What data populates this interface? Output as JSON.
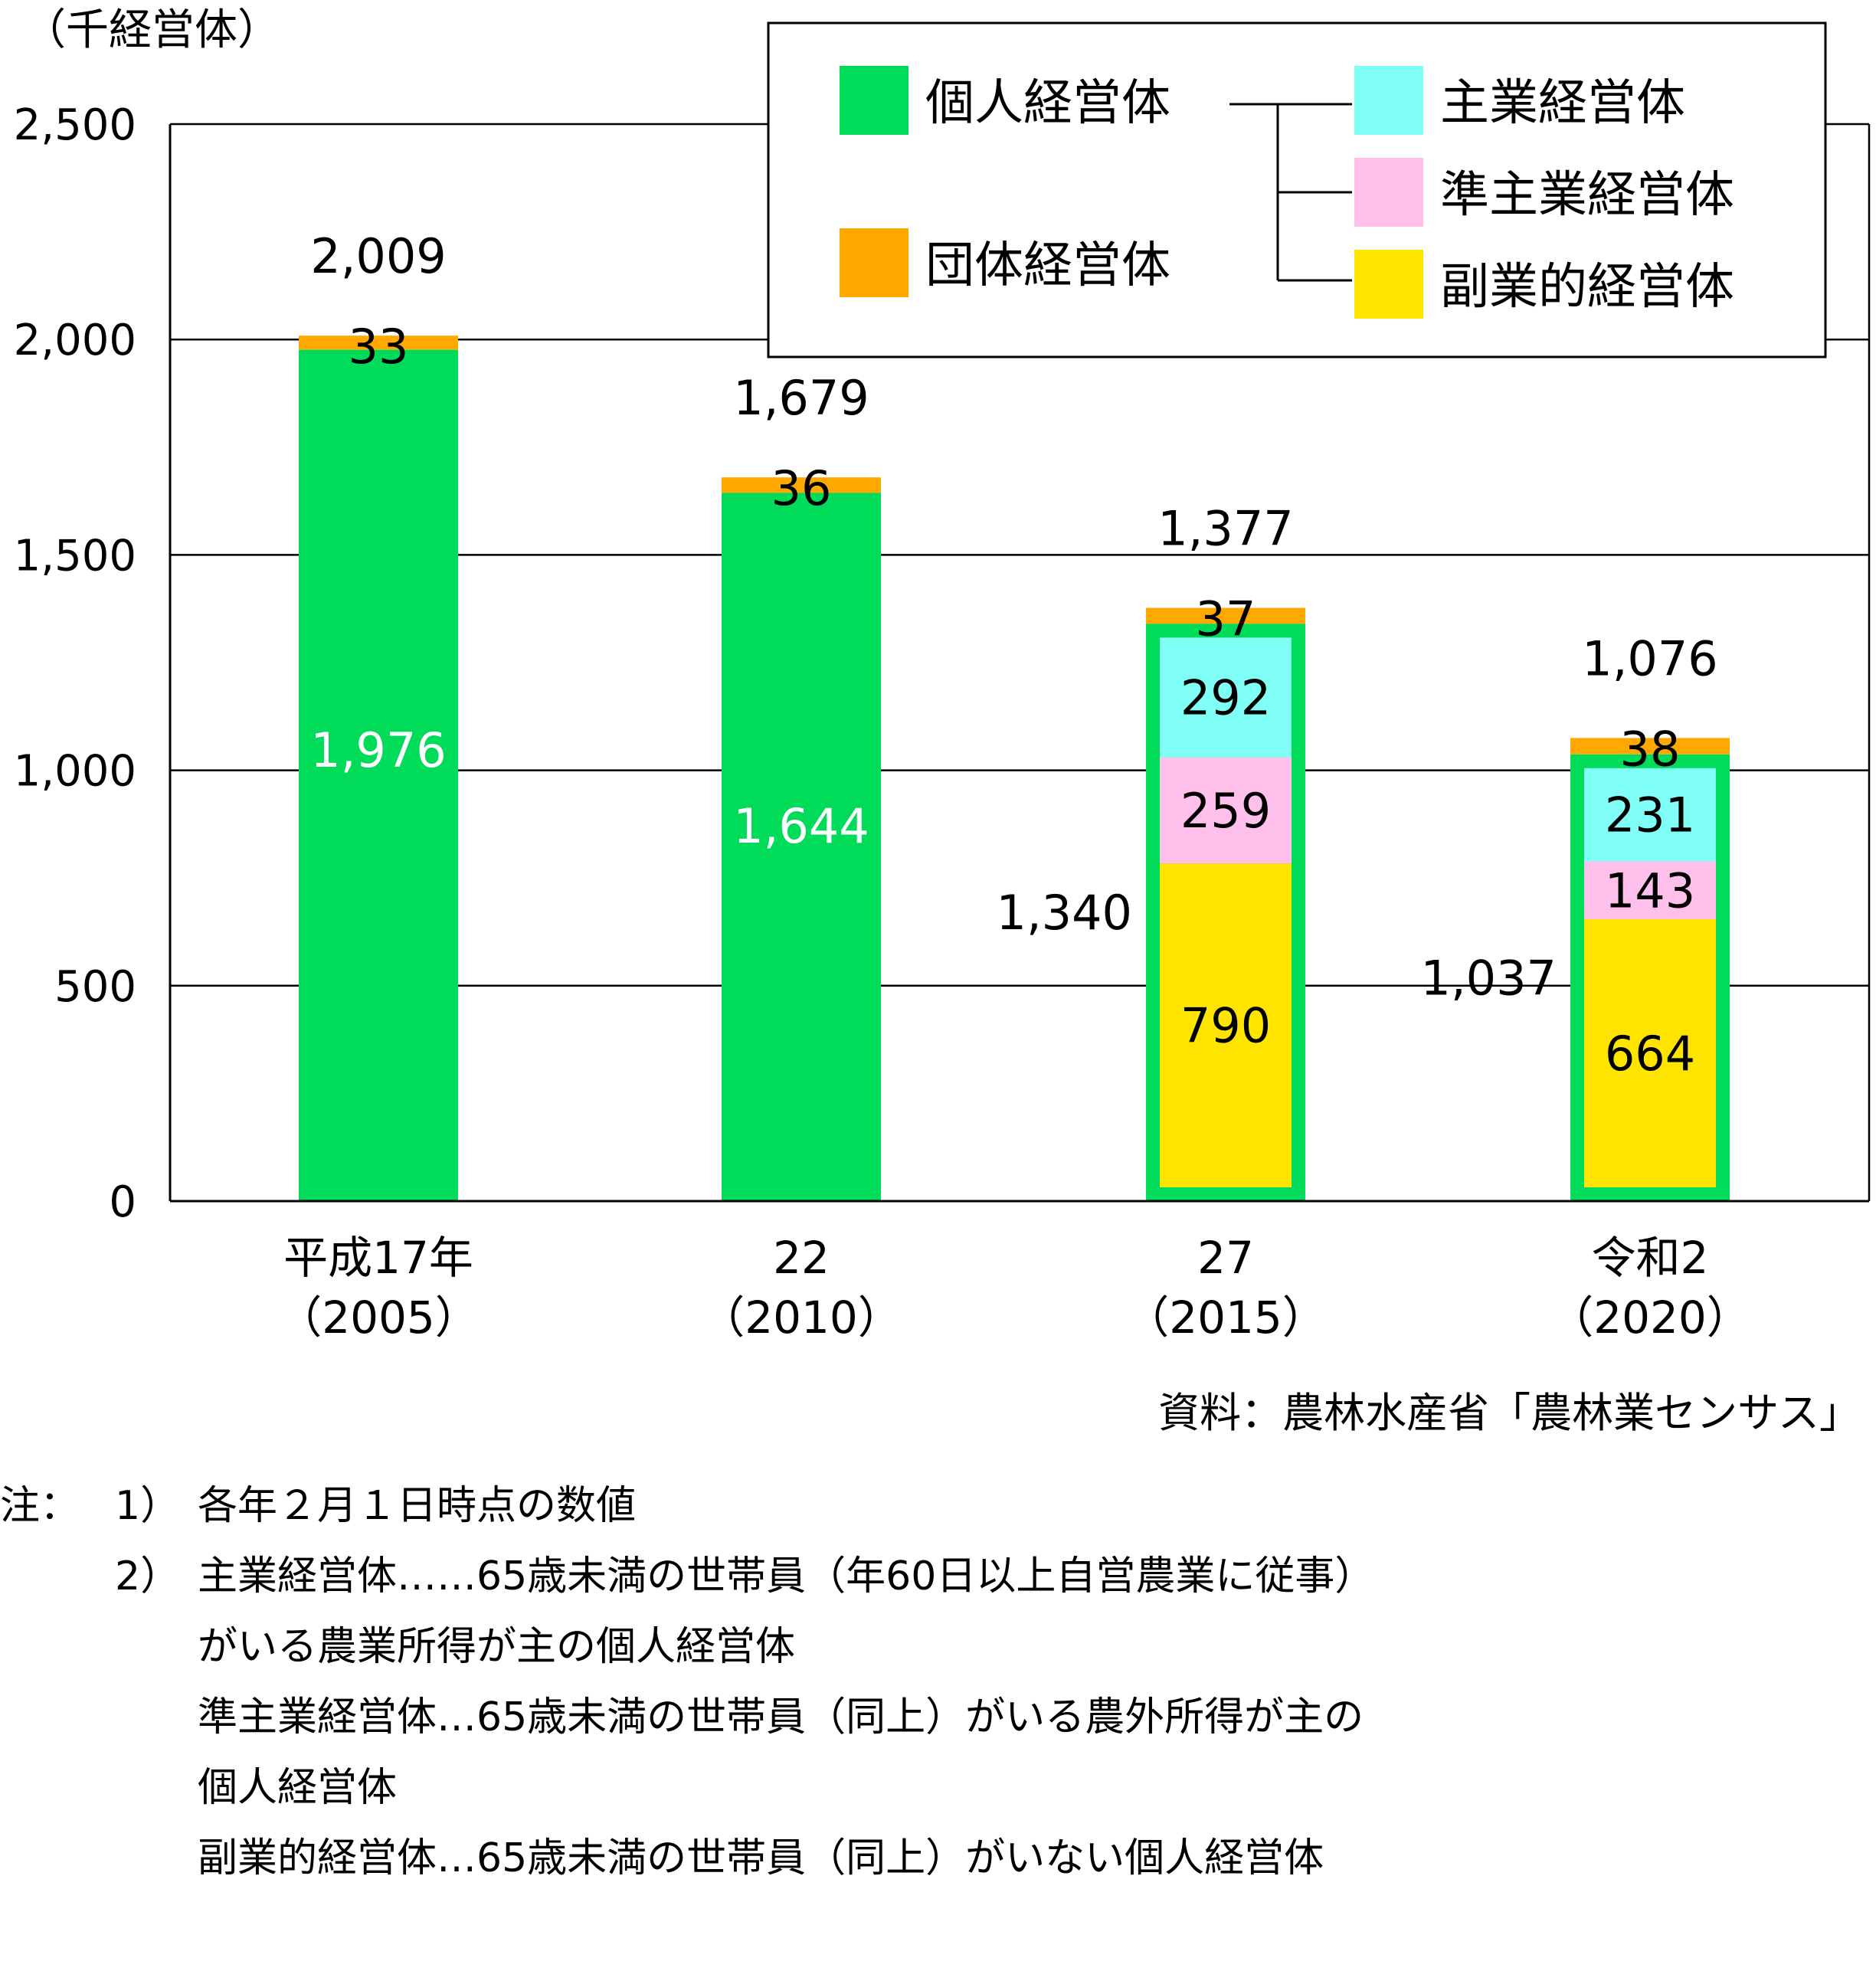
{
  "chart_data": {
    "type": "bar",
    "stacked": true,
    "y_unit_label": "（千経営体）",
    "ylim": [
      0,
      2500
    ],
    "yticks": [
      "0",
      "500",
      "1,000",
      "1,500",
      "2,000",
      "2,500"
    ],
    "ytick_values": [
      0,
      500,
      1000,
      1500,
      2000,
      2500
    ],
    "grid": true,
    "categories": [
      {
        "line1": "平成17年",
        "line2": "（2005）"
      },
      {
        "line1": "22",
        "line2": "（2010）"
      },
      {
        "line1": "27",
        "line2": "（2015）"
      },
      {
        "line1": "令和2",
        "line2": "（2020）"
      }
    ],
    "individual": [
      1976,
      1644,
      1340,
      1037
    ],
    "individual_labels": [
      "1,976",
      "1,644",
      "1,340",
      "1,037"
    ],
    "organization": [
      33,
      36,
      37,
      38
    ],
    "organization_labels": [
      "33",
      "36",
      "37",
      "38"
    ],
    "totals": [
      "2,009",
      "1,679",
      "1,377",
      "1,076"
    ],
    "breakdown": [
      null,
      null,
      {
        "main": 292,
        "semi": 259,
        "side": 790
      },
      {
        "main": 231,
        "semi": 143,
        "side": 664
      }
    ],
    "legend": {
      "placement": "top-right",
      "individual": "個人経営体",
      "organization": "団体経営体",
      "main": "主業経営体",
      "semi": "準主業経営体",
      "side": "副業的経営体"
    },
    "colors": {
      "individual": "#00DC5A",
      "organization": "#FFA800",
      "main": "#80FFF6",
      "semi": "#FFC0EC",
      "side": "#FFE400"
    }
  },
  "source": "資料：農林水産省「農林業センサス」",
  "notes": {
    "prefix": "注：",
    "n1_num": "1）",
    "n1": "各年２月１日時点の数値",
    "n2_num": "2）",
    "n2_l1": "主業経営体……65歳未満の世帯員（年60日以上自営農業に従事）",
    "n2_l2": "がいる農業所得が主の個人経営体",
    "n2_l3": "準主業経営体…65歳未満の世帯員（同上）がいる農外所得が主の",
    "n2_l4": "個人経営体",
    "n2_l5": "副業的経営体…65歳未満の世帯員（同上）がいない個人経営体"
  }
}
